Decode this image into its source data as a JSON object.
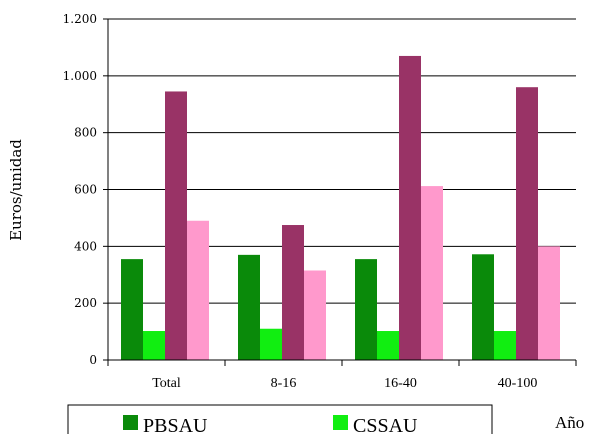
{
  "chart_data": {
    "type": "bar",
    "categories": [
      "Total",
      "8-16",
      "16-40",
      "40-100"
    ],
    "series": [
      {
        "name": "PBSAU",
        "color": "#0a8a0a",
        "values": [
          355,
          370,
          355,
          372
        ]
      },
      {
        "name": "CSSAU",
        "color": "#11ee11",
        "values": [
          102,
          110,
          102,
          102
        ]
      },
      {
        "name": "",
        "color": "#993366",
        "values": [
          945,
          475,
          1070,
          960
        ]
      },
      {
        "name": "",
        "color": "#ff99cc",
        "values": [
          490,
          315,
          612,
          400
        ]
      }
    ],
    "ylabel": "Euros/unidad",
    "xlabel": "",
    "ylim": [
      0,
      1200
    ],
    "yticks": [
      0,
      200,
      400,
      600,
      800,
      1000,
      1200
    ],
    "ytick_labels": [
      "0",
      "200",
      "400",
      "600",
      "800",
      "1.000",
      "1.200"
    ],
    "grid": true,
    "legend_placement": "bottom",
    "side_label": "Año"
  }
}
